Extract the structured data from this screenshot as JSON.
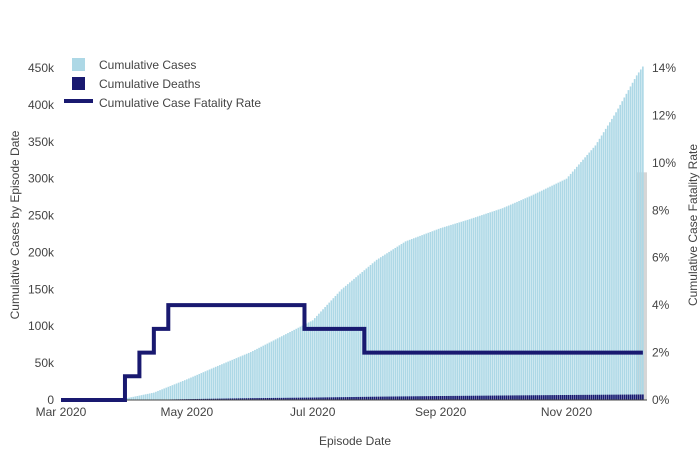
{
  "chart_data": {
    "type": "bar",
    "xlabel": "Episode Date",
    "ylabel": "Cumulative Cases by Episode Date",
    "y2label": "Cumulative Case Fatality Rate",
    "x_start": "2020-03-01",
    "x_end": "2020-12-10",
    "x_ticks": [
      {
        "date": "2020-03-01",
        "label": "Mar 2020"
      },
      {
        "date": "2020-05-01",
        "label": "May 2020"
      },
      {
        "date": "2020-07-01",
        "label": "Jul 2020"
      },
      {
        "date": "2020-09-01",
        "label": "Sep 2020"
      },
      {
        "date": "2020-11-01",
        "label": "Nov 2020"
      }
    ],
    "ylim": [
      0,
      450000
    ],
    "y_ticks": [
      {
        "value": 0,
        "label": "0"
      },
      {
        "value": 50000,
        "label": "50k"
      },
      {
        "value": 100000,
        "label": "100k"
      },
      {
        "value": 150000,
        "label": "150k"
      },
      {
        "value": 200000,
        "label": "200k"
      },
      {
        "value": 250000,
        "label": "250k"
      },
      {
        "value": 300000,
        "label": "300k"
      },
      {
        "value": 350000,
        "label": "350k"
      },
      {
        "value": 400000,
        "label": "400k"
      },
      {
        "value": 450000,
        "label": "450k"
      }
    ],
    "y2lim": [
      0,
      14
    ],
    "y2_ticks": [
      {
        "value": 0,
        "label": "0%"
      },
      {
        "value": 2,
        "label": "2%"
      },
      {
        "value": 4,
        "label": "4%"
      },
      {
        "value": 6,
        "label": "6%"
      },
      {
        "value": 8,
        "label": "8%"
      },
      {
        "value": 10,
        "label": "10%"
      },
      {
        "value": 12,
        "label": "12%"
      },
      {
        "value": 14,
        "label": "14%"
      }
    ],
    "grid": false,
    "legend_position": "top-left",
    "series": [
      {
        "name": "Cumulative Cases",
        "type": "bar",
        "color": "#add8e6",
        "points": [
          [
            "2020-03-01",
            0
          ],
          [
            "2020-04-01",
            2000
          ],
          [
            "2020-04-15",
            10000
          ],
          [
            "2020-05-01",
            28000
          ],
          [
            "2020-05-15",
            45000
          ],
          [
            "2020-06-01",
            65000
          ],
          [
            "2020-06-15",
            85000
          ],
          [
            "2020-07-01",
            108000
          ],
          [
            "2020-07-15",
            150000
          ],
          [
            "2020-08-01",
            190000
          ],
          [
            "2020-08-15",
            215000
          ],
          [
            "2020-09-01",
            233000
          ],
          [
            "2020-09-15",
            245000
          ],
          [
            "2020-10-01",
            260000
          ],
          [
            "2020-10-15",
            277000
          ],
          [
            "2020-11-01",
            300000
          ],
          [
            "2020-11-15",
            345000
          ],
          [
            "2020-11-25",
            390000
          ],
          [
            "2020-12-05",
            440000
          ],
          [
            "2020-12-08",
            452000
          ]
        ]
      },
      {
        "name": "Cumulative Deaths",
        "type": "bar",
        "color": "#191970",
        "points": [
          [
            "2020-03-01",
            0
          ],
          [
            "2020-04-15",
            300
          ],
          [
            "2020-05-01",
            1200
          ],
          [
            "2020-06-01",
            2500
          ],
          [
            "2020-07-01",
            3300
          ],
          [
            "2020-08-01",
            4500
          ],
          [
            "2020-09-01",
            5400
          ],
          [
            "2020-10-01",
            6100
          ],
          [
            "2020-11-01",
            6800
          ],
          [
            "2020-12-08",
            7500
          ]
        ]
      },
      {
        "name": "Cumulative Case Fatality Rate",
        "type": "line",
        "color": "#191970",
        "steps": [
          [
            "2020-03-01",
            0
          ],
          [
            "2020-04-01",
            1
          ],
          [
            "2020-04-08",
            2
          ],
          [
            "2020-04-15",
            3
          ],
          [
            "2020-04-22",
            4
          ],
          [
            "2020-06-27",
            3
          ],
          [
            "2020-07-26",
            2
          ],
          [
            "2020-12-08",
            2
          ]
        ]
      }
    ],
    "highlight_band": {
      "start": "2020-12-05",
      "end": "2020-12-10",
      "upto": 9.6,
      "color": "#c8c8c8"
    }
  }
}
